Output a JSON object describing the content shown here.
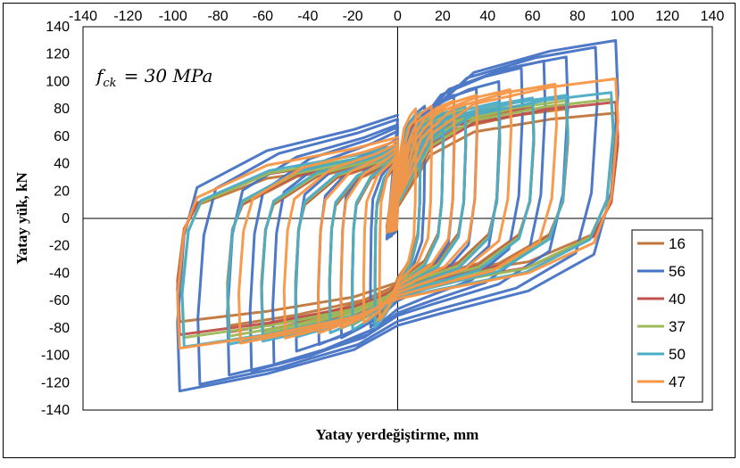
{
  "chart_data": {
    "type": "line",
    "title": "",
    "xlabel": "Yatay yerdeğiştirme,  mm",
    "ylabel": "Yatay yük, kN",
    "xlim": [
      -140,
      140
    ],
    "ylim": [
      -140,
      140
    ],
    "x_ticks": [
      "-140",
      "-120",
      "-100",
      "-80",
      "-60",
      "-40",
      "-20",
      "0",
      "20",
      "40",
      "60",
      "80",
      "100",
      "120",
      "140"
    ],
    "y_ticks": [
      "140",
      "120",
      "100",
      "80",
      "60",
      "40",
      "20",
      "0",
      "-20",
      "-40",
      "-60",
      "-80",
      "-100",
      "-120",
      "-140"
    ],
    "x_axis_position": "top",
    "grid": false,
    "legend_position": "bottom-right",
    "annotation": "f_ck = 30 MPa",
    "annotation_parts": {
      "main": "f",
      "sub": "ck",
      "rest": "= 30 MPa"
    },
    "series": [
      {
        "name": "16",
        "color": "#c0763a",
        "amp": [
          10,
          20,
          30,
          45,
          60,
          75,
          97
        ],
        "peak": [
          72,
          75,
          75,
          78,
          80,
          80,
          77
        ],
        "slope": 0.42,
        "neg_scale": 0.98
      },
      {
        "name": "56",
        "color": "#4472c4",
        "amp": [
          12,
          25,
          35,
          45,
          55,
          65,
          75,
          88,
          97
        ],
        "peak": [
          82,
          90,
          95,
          100,
          110,
          115,
          118,
          125,
          130
        ],
        "slope": 0.58,
        "neg_scale": 0.97
      },
      {
        "name": "40",
        "color": "#c0504d",
        "amp": [
          10,
          20,
          30,
          45,
          60,
          75,
          97
        ],
        "peak": [
          74,
          76,
          78,
          80,
          82,
          83,
          85
        ],
        "slope": 0.44,
        "neg_scale": 1.0
      },
      {
        "name": "37",
        "color": "#9bbb59",
        "amp": [
          10,
          20,
          30,
          45,
          60,
          75,
          95
        ],
        "peak": [
          76,
          78,
          80,
          82,
          84,
          86,
          87
        ],
        "slope": 0.46,
        "neg_scale": 1.0
      },
      {
        "name": "50",
        "color": "#4bacc6",
        "amp": [
          10,
          20,
          30,
          45,
          60,
          75,
          95
        ],
        "peak": [
          78,
          80,
          82,
          85,
          88,
          90,
          92
        ],
        "slope": 0.48,
        "neg_scale": 1.02
      },
      {
        "name": "47",
        "color": "#f79646",
        "amp": [
          8,
          15,
          25,
          35,
          50,
          70,
          97
        ],
        "peak": [
          80,
          82,
          86,
          90,
          94,
          98,
          102
        ],
        "slope": 0.5,
        "neg_scale": 0.93
      }
    ]
  }
}
